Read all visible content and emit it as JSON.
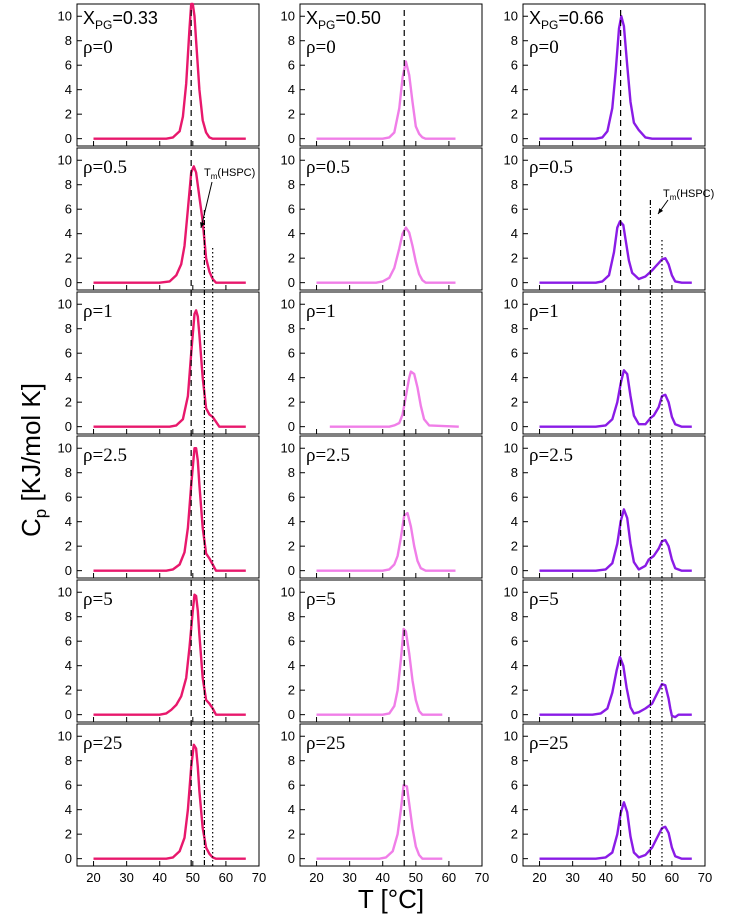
{
  "chart_data": {
    "type": "line",
    "ylabel": "C",
    "ylabel_sub": "p",
    "ylabel_unit": " [KJ/mol K]",
    "xlabel": "T [°C]",
    "xlim": [
      15,
      70
    ],
    "ylim": [
      -0.6,
      11
    ],
    "x_ticks": [
      20,
      30,
      40,
      50,
      60,
      70
    ],
    "y_ticks": [
      0,
      2,
      4,
      6,
      8,
      10
    ],
    "annotation": {
      "text_main": "T",
      "text_sub": "m",
      "text_tail": "(HSPC)"
    },
    "reference_lines": {
      "xpg033": {
        "dashed": 49.5,
        "dashdot": 53.5,
        "dotted": 56.0
      },
      "xpg050": {
        "dashed": 46.5
      },
      "xpg066": {
        "dashed": 44.5,
        "dashdot": 53.5,
        "dotted": 57.0
      }
    },
    "columns": [
      {
        "label_main": "X",
        "label_sub": "PG",
        "label_value": "=0.33",
        "color": "#e8186c"
      },
      {
        "label_main": "X",
        "label_sub": "PG",
        "label_value": "=0.50",
        "color": "#f07ee8"
      },
      {
        "label_main": "X",
        "label_sub": "PG",
        "label_value": "=0.66",
        "color": "#8a1be6"
      }
    ],
    "rows": [
      "ρ=0",
      "ρ=0.5",
      "ρ=1",
      "ρ=2.5",
      "ρ=5",
      "ρ=25"
    ],
    "series": [
      {
        "name": "XPG=0.33 ρ=0",
        "x": [
          20,
          42,
          44,
          46,
          47,
          48,
          49,
          49.5,
          50,
          50.5,
          51,
          52,
          53,
          54,
          55,
          56,
          58,
          66
        ],
        "y": [
          0,
          0,
          0.1,
          0.6,
          1.8,
          4.5,
          9,
          11,
          11,
          10,
          8,
          4,
          1.5,
          0.5,
          0.1,
          0,
          0,
          0
        ]
      },
      {
        "name": "XPG=0.50 ρ=0",
        "x": [
          20,
          40,
          42,
          43.5,
          45,
          46,
          47,
          48,
          49,
          50,
          51,
          52,
          53,
          62
        ],
        "y": [
          0,
          0,
          0.1,
          0.5,
          2.5,
          5,
          6.3,
          5.2,
          3,
          1,
          0.4,
          0.1,
          0,
          0
        ]
      },
      {
        "name": "XPG=0.66 ρ=0",
        "x": [
          20,
          37,
          39,
          40.5,
          42,
          43,
          44,
          44.7,
          45.5,
          46.5,
          47.5,
          48.5,
          50,
          52,
          54,
          66
        ],
        "y": [
          0,
          0,
          0.1,
          0.6,
          2.5,
          5.5,
          9,
          10,
          9.2,
          6,
          3,
          1.3,
          0.7,
          0.1,
          0,
          0
        ]
      },
      {
        "name": "XPG=0.33 ρ=0.5",
        "x": [
          20,
          40,
          43,
          45,
          46.5,
          47.5,
          48.5,
          49.5,
          50.3,
          51,
          52,
          53,
          53.5,
          54,
          55,
          56,
          57,
          66
        ],
        "y": [
          0,
          0,
          0.1,
          0.6,
          1.5,
          3,
          6,
          9,
          9.5,
          9,
          7,
          5,
          3.5,
          2,
          0.9,
          0.3,
          0,
          0
        ]
      },
      {
        "name": "XPG=0.50 ρ=0.5",
        "x": [
          20,
          38,
          40,
          42,
          43.5,
          45,
          46,
          47,
          48,
          49,
          50,
          51,
          52,
          53,
          62
        ],
        "y": [
          0,
          0,
          0.1,
          0.4,
          1.2,
          2.8,
          4,
          4.5,
          4.1,
          3,
          1.7,
          0.7,
          0.2,
          0,
          0
        ]
      },
      {
        "name": "XPG=0.66 ρ=0.5",
        "x": [
          20,
          37,
          39,
          41,
          42.5,
          43.5,
          44.3,
          45.3,
          46,
          47,
          48,
          50,
          52,
          54,
          55,
          56,
          57,
          58,
          59,
          60,
          61,
          63,
          66
        ],
        "y": [
          0,
          0,
          0.1,
          0.6,
          2.5,
          4.5,
          5,
          4.7,
          3.5,
          1.8,
          0.8,
          0.3,
          0.5,
          1,
          1.3,
          1.6,
          1.9,
          2,
          1.5,
          0.6,
          0.1,
          0,
          0
        ]
      },
      {
        "name": "XPG=0.33 ρ=1",
        "x": [
          20,
          43,
          45,
          47,
          48.5,
          49.5,
          50.5,
          51,
          51.5,
          52,
          53,
          54,
          55,
          56,
          57,
          58,
          66
        ],
        "y": [
          0,
          0,
          0.1,
          0.6,
          2.5,
          6,
          9.2,
          9.5,
          9,
          7.5,
          4,
          1.5,
          1,
          0.8,
          0.4,
          0,
          0
        ]
      },
      {
        "name": "XPG=0.50 ρ=1",
        "x": [
          24,
          42,
          43.5,
          45,
          46,
          47,
          48,
          48.5,
          49.5,
          50.5,
          51.5,
          52.5,
          54,
          63
        ],
        "y": [
          0,
          0,
          0.1,
          0.3,
          1,
          2.5,
          4,
          4.5,
          4.3,
          3.2,
          1.7,
          0.6,
          0.1,
          0
        ]
      },
      {
        "name": "XPG=0.66 ρ=1",
        "x": [
          20,
          37,
          40,
          42,
          43.5,
          44.5,
          45.5,
          46.5,
          47.5,
          48.5,
          50,
          52,
          53.5,
          54.5,
          56,
          57,
          58,
          59,
          60,
          61,
          63,
          66
        ],
        "y": [
          0,
          0,
          0.1,
          0.6,
          2,
          3.5,
          4.6,
          4.3,
          2.5,
          0.9,
          0.2,
          0.2,
          0.7,
          0.9,
          1.6,
          2.5,
          2.6,
          2,
          0.8,
          0.2,
          0,
          0
        ]
      },
      {
        "name": "XPG=0.33 ρ=2.5",
        "x": [
          20,
          42,
          44,
          46,
          47.5,
          48.5,
          49.5,
          50.5,
          51,
          51.5,
          52,
          53,
          54,
          55,
          56,
          57,
          66
        ],
        "y": [
          0,
          0,
          0.1,
          0.5,
          1.5,
          3.5,
          7,
          10,
          10,
          9,
          7,
          3.5,
          1.4,
          1,
          0.5,
          0,
          0
        ]
      },
      {
        "name": "XPG=0.50 ρ=2.5",
        "x": [
          20,
          40,
          42,
          43.5,
          44.5,
          45.5,
          46.5,
          47.5,
          48.5,
          49.5,
          50.5,
          51.5,
          53,
          62
        ],
        "y": [
          0,
          0,
          0.1,
          0.5,
          1.2,
          2.7,
          4.5,
          4.7,
          3.6,
          2,
          0.8,
          0.2,
          0,
          0
        ]
      },
      {
        "name": "XPG=0.66 ρ=2.5",
        "x": [
          20,
          37,
          40,
          42,
          43.5,
          44.5,
          45.5,
          46.5,
          47.5,
          48.5,
          50,
          52,
          53,
          54.5,
          56,
          57,
          58,
          59,
          60,
          61,
          63,
          66
        ],
        "y": [
          0,
          0,
          0.1,
          0.6,
          2.2,
          4,
          5,
          4.3,
          2.2,
          0.7,
          0.1,
          0.4,
          0.9,
          1.2,
          1.8,
          2.4,
          2.5,
          2,
          0.9,
          0.2,
          0,
          0
        ]
      },
      {
        "name": "XPG=0.33 ρ=5",
        "x": [
          20,
          40,
          42,
          43.5,
          45,
          46.5,
          48,
          49,
          50,
          50.5,
          51,
          51.5,
          52,
          53,
          54,
          55,
          56,
          57,
          66
        ],
        "y": [
          0,
          0,
          0.1,
          0.4,
          0.8,
          1.5,
          3,
          5.5,
          8.5,
          9.8,
          9.7,
          8.5,
          6.5,
          3,
          1.2,
          0.9,
          0.5,
          0,
          0
        ]
      },
      {
        "name": "XPG=0.50 ρ=5",
        "x": [
          20,
          40,
          42,
          43.5,
          44.5,
          45.5,
          46.3,
          47,
          48,
          49,
          50,
          51,
          52,
          53,
          58
        ],
        "y": [
          0,
          0,
          0.1,
          0.7,
          2,
          4.5,
          7,
          6.8,
          5,
          2.8,
          1.2,
          0.3,
          0,
          0,
          0
        ]
      },
      {
        "name": "XPG=0.66 ρ=5",
        "x": [
          20,
          36,
          38.5,
          40.5,
          42,
          43.3,
          44.3,
          45.3,
          46.3,
          47.5,
          48.5,
          50,
          52,
          54,
          55.5,
          57,
          58,
          59,
          59.5,
          60,
          61,
          62,
          64,
          66
        ],
        "y": [
          0,
          0,
          0.1,
          0.5,
          1.8,
          3.6,
          4.7,
          4,
          2.2,
          0.6,
          0.1,
          0.2,
          0.5,
          0.9,
          1.7,
          2.5,
          2.4,
          1.3,
          0.5,
          -0.1,
          -0.2,
          0,
          0,
          0
        ]
      },
      {
        "name": "XPG=0.33 ρ=25",
        "x": [
          20,
          42,
          44,
          46,
          47.5,
          48.5,
          49.5,
          50.3,
          51,
          51.5,
          52,
          53,
          54,
          55,
          56,
          57,
          66
        ],
        "y": [
          0,
          0,
          0.1,
          0.6,
          1.7,
          4,
          7.5,
          9.3,
          9,
          7.5,
          5.5,
          2.5,
          0.9,
          0.4,
          0.1,
          0,
          0
        ]
      },
      {
        "name": "XPG=0.50 ρ=25",
        "x": [
          20,
          39,
          41,
          43,
          44.5,
          45.5,
          46.3,
          47.3,
          48,
          49,
          50,
          51,
          52,
          53,
          58
        ],
        "y": [
          0,
          0,
          0.1,
          0.6,
          2,
          4,
          6,
          5.9,
          4.5,
          2.5,
          1,
          0.3,
          0,
          0,
          0
        ]
      },
      {
        "name": "XPG=0.66 ρ=25",
        "x": [
          20,
          37,
          40,
          42,
          43.5,
          44.5,
          45.5,
          46.5,
          47.5,
          48.5,
          50,
          52,
          54,
          55.5,
          57,
          58,
          59,
          60,
          61,
          63,
          66
        ],
        "y": [
          0,
          0,
          0.1,
          0.5,
          2,
          3.7,
          4.6,
          3.8,
          1.8,
          0.5,
          0.1,
          0.3,
          0.9,
          1.7,
          2.5,
          2.6,
          2.1,
          0.9,
          0.2,
          0,
          0
        ]
      }
    ]
  }
}
